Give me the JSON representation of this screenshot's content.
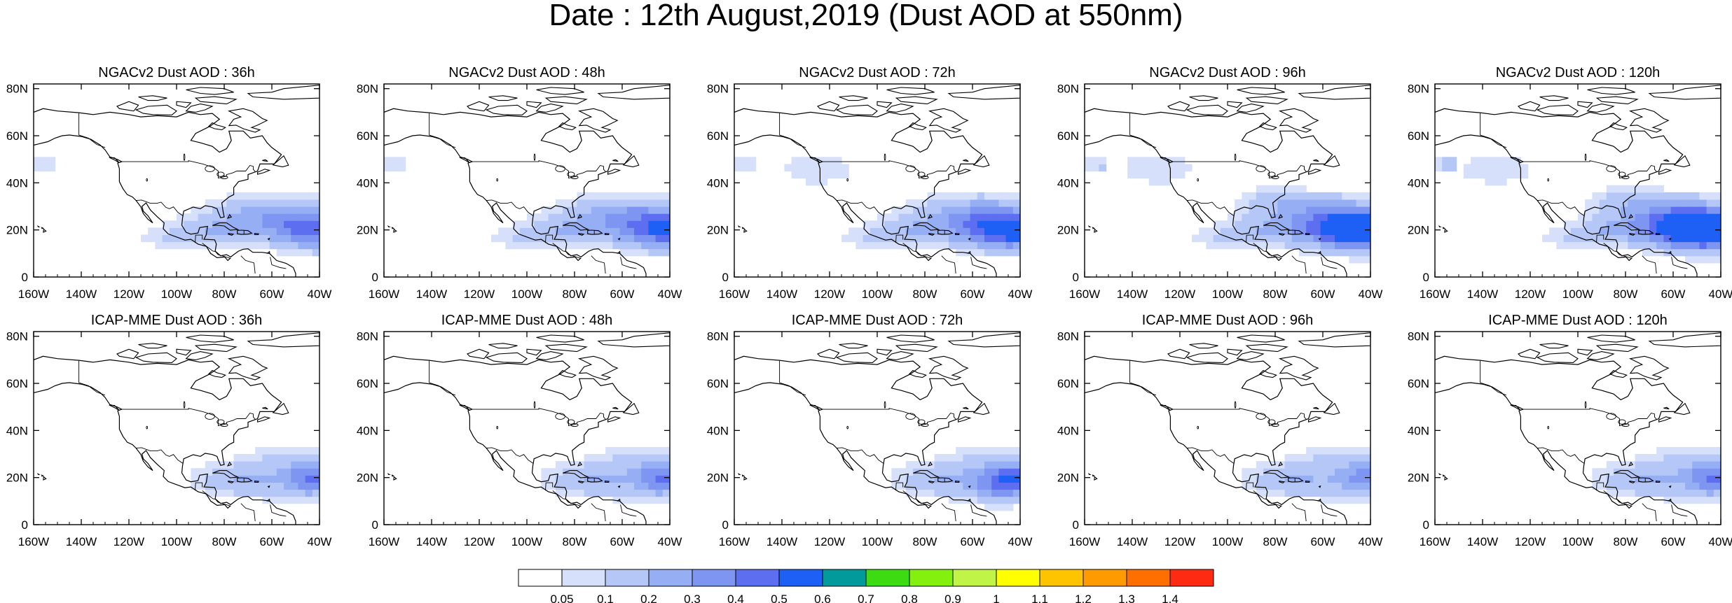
{
  "title": "Date : 12th August,2019 (Dust AOD at 550nm)",
  "axes": {
    "x_ticks": [
      "160W",
      "140W",
      "120W",
      "100W",
      "80W",
      "60W",
      "40W"
    ],
    "y_ticks": [
      "80N",
      "60N",
      "40N",
      "20N",
      "0"
    ]
  },
  "panels": [
    {
      "title": "NGACv2 Dust AOD : 36h",
      "lead": 36,
      "model": "NGACv2"
    },
    {
      "title": "NGACv2 Dust AOD : 48h",
      "lead": 48,
      "model": "NGACv2"
    },
    {
      "title": "NGACv2 Dust AOD : 72h",
      "lead": 72,
      "model": "NGACv2"
    },
    {
      "title": "NGACv2 Dust AOD : 96h",
      "lead": 96,
      "model": "NGACv2"
    },
    {
      "title": "NGACv2 Dust AOD : 120h",
      "lead": 120,
      "model": "NGACv2"
    },
    {
      "title": "ICAP-MME Dust AOD : 36h",
      "lead": 36,
      "model": "ICAP-MME"
    },
    {
      "title": "ICAP-MME Dust AOD : 48h",
      "lead": 48,
      "model": "ICAP-MME"
    },
    {
      "title": "ICAP-MME Dust AOD : 72h",
      "lead": 72,
      "model": "ICAP-MME"
    },
    {
      "title": "ICAP-MME Dust AOD : 96h",
      "lead": 96,
      "model": "ICAP-MME"
    },
    {
      "title": "ICAP-MME Dust AOD : 120h",
      "lead": 120,
      "model": "ICAP-MME"
    }
  ],
  "colorbar": {
    "labels": [
      "0.05",
      "0.1",
      "0.2",
      "0.3",
      "0.4",
      "0.5",
      "0.6",
      "0.7",
      "0.8",
      "0.9",
      "1",
      "1.1",
      "1.2",
      "1.3",
      "1.4"
    ],
    "colors": [
      "#ffffff",
      "#d6e0fb",
      "#b5c7f7",
      "#96aef4",
      "#7f95f2",
      "#5e6ef0",
      "#1e5ff5",
      "#029a9a",
      "#3ddb12",
      "#84f00e",
      "#c0f547",
      "#ffff00",
      "#ffc400",
      "#ff9a00",
      "#ff6f00",
      "#ff2a12"
    ]
  }
}
